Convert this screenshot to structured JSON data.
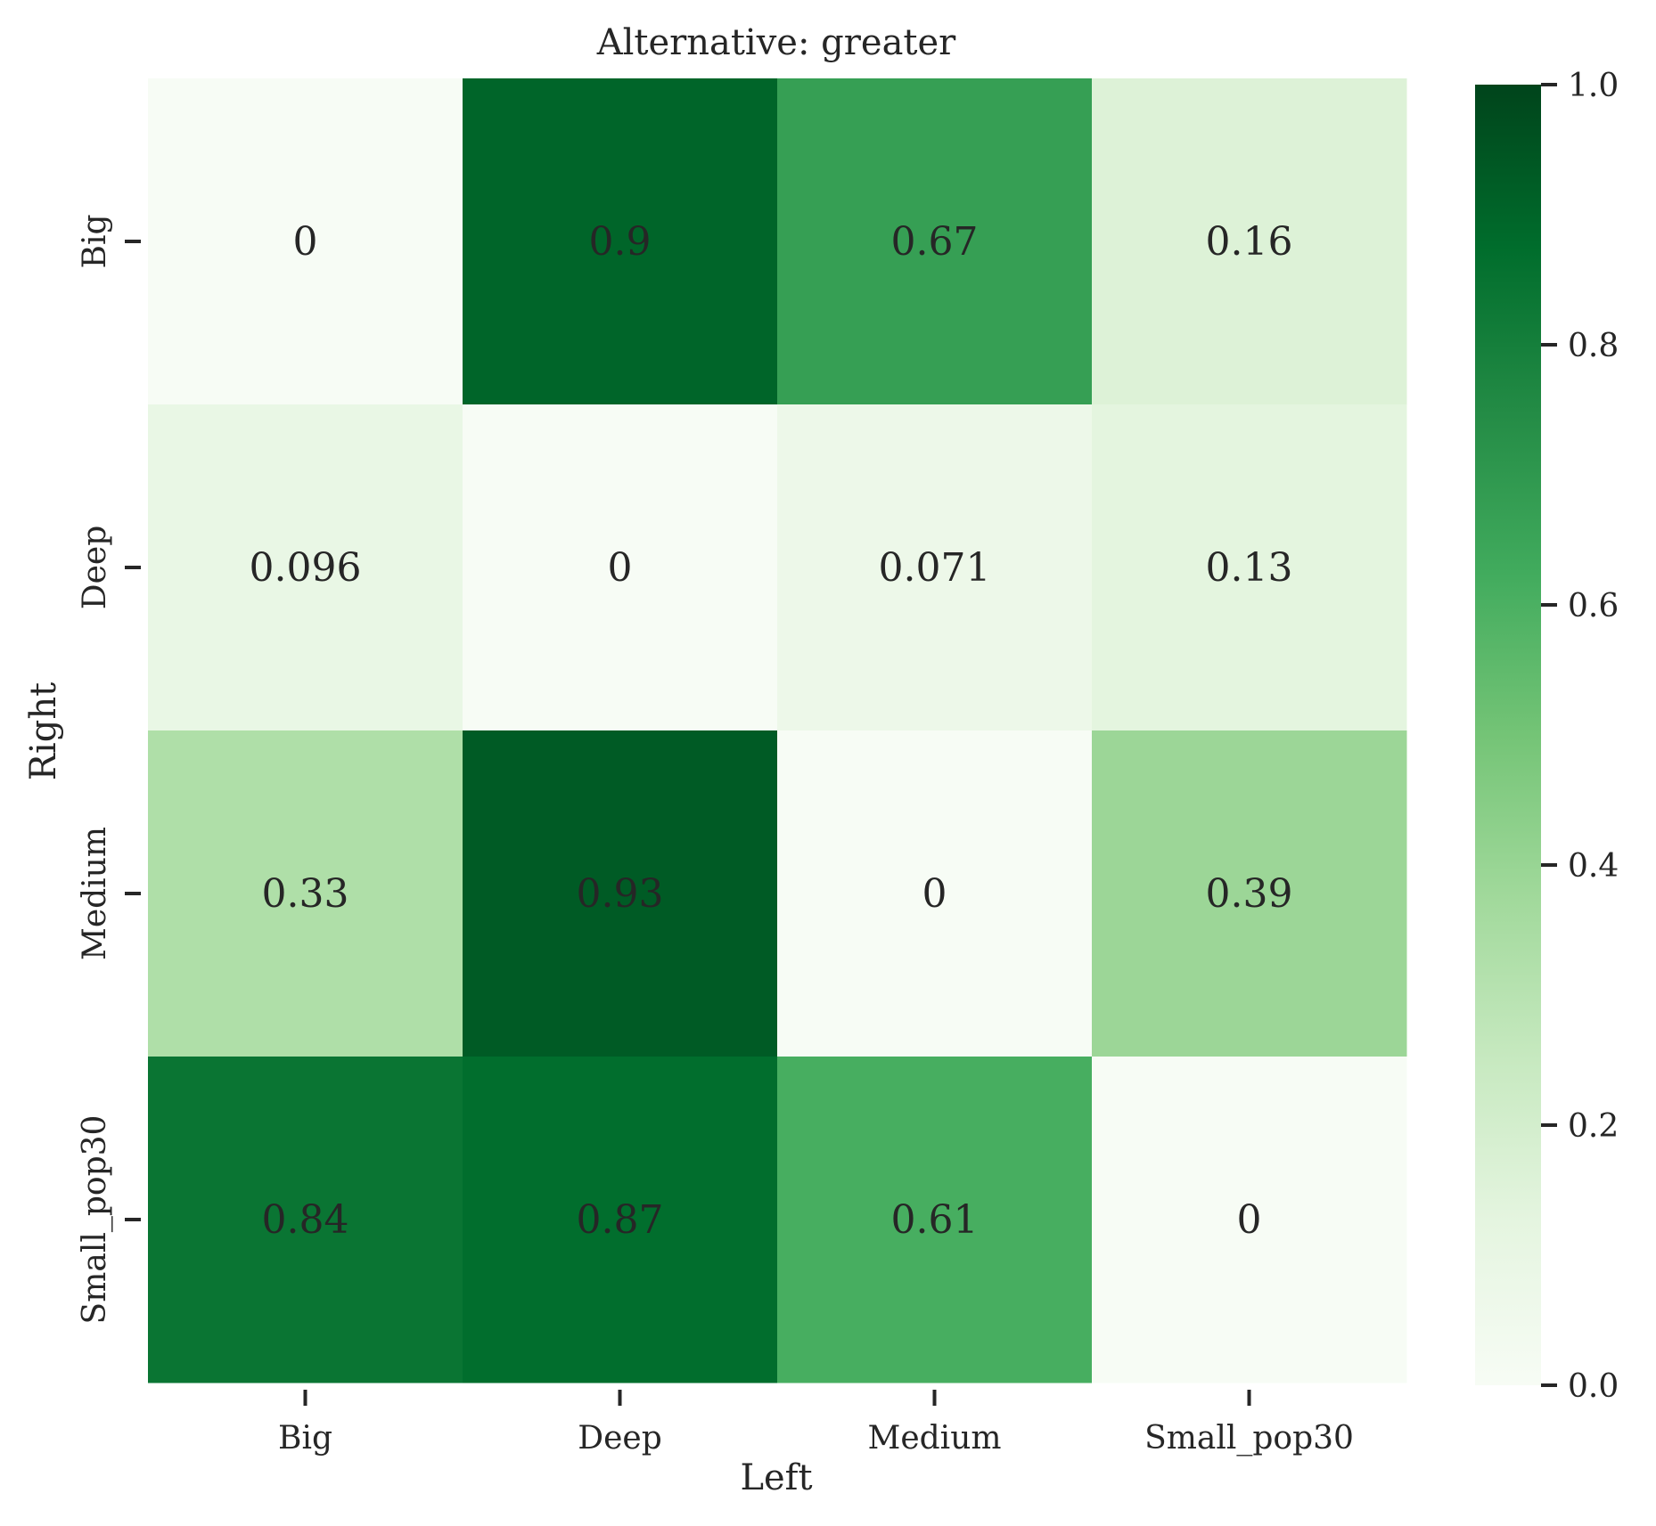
{
  "chart_data": {
    "type": "heatmap",
    "title": "Alternative: greater",
    "xlabel": "Left",
    "ylabel": "Right",
    "x_categories": [
      "Big",
      "Deep",
      "Medium",
      "Small_pop30"
    ],
    "y_categories": [
      "Big",
      "Deep",
      "Medium",
      "Small_pop30"
    ],
    "values": [
      [
        0,
        0.9,
        0.67,
        0.16
      ],
      [
        0.096,
        0,
        0.071,
        0.13
      ],
      [
        0.33,
        0.93,
        0,
        0.39
      ],
      [
        0.84,
        0.87,
        0.61,
        0
      ]
    ],
    "cell_labels": [
      [
        "0",
        "0.9",
        "0.67",
        "0.16"
      ],
      [
        "0.096",
        "0",
        "0.071",
        "0.13"
      ],
      [
        "0.33",
        "0.93",
        "0",
        "0.39"
      ],
      [
        "0.84",
        "0.87",
        "0.61",
        "0"
      ]
    ],
    "colormap": "Greens",
    "colormap_stops": [
      "#f7fcf5",
      "#e5f5e0",
      "#c7e9c0",
      "#a1d99b",
      "#74c476",
      "#41ab5d",
      "#238b45",
      "#006d2c",
      "#00441b"
    ],
    "vmin": 0,
    "vmax": 1,
    "colorbar_ticks": [
      0.0,
      0.2,
      0.4,
      0.6,
      0.8,
      1.0
    ],
    "colorbar_tick_labels": [
      "0.0",
      "0.2",
      "0.4",
      "0.6",
      "0.8",
      "1.0"
    ],
    "legend": "colorbar-right",
    "grid": false
  }
}
